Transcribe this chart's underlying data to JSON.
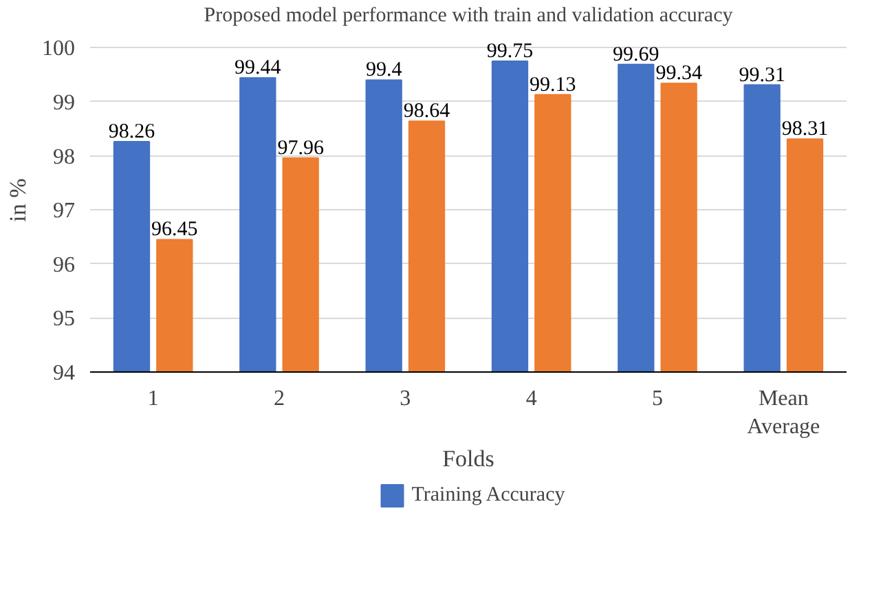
{
  "chart_data": {
    "type": "bar",
    "title": "Proposed model performance with train and validation accuracy",
    "xlabel": "Folds",
    "ylabel": "in %",
    "categories": [
      "1",
      "2",
      "3",
      "4",
      "5",
      "Mean Average"
    ],
    "series": [
      {
        "name": "Training Accuracy",
        "color": "#4472c4",
        "values": [
          98.26,
          99.44,
          99.4,
          99.75,
          99.69,
          99.31
        ]
      },
      {
        "color": "#ed7d31",
        "values": [
          96.45,
          97.96,
          98.64,
          99.13,
          99.34,
          98.31
        ]
      }
    ],
    "ylim": [
      94,
      100
    ],
    "yticks": [
      94,
      95,
      96,
      97,
      98,
      99,
      100
    ],
    "grid": "y",
    "legend": "bottom",
    "data_labels": true
  }
}
